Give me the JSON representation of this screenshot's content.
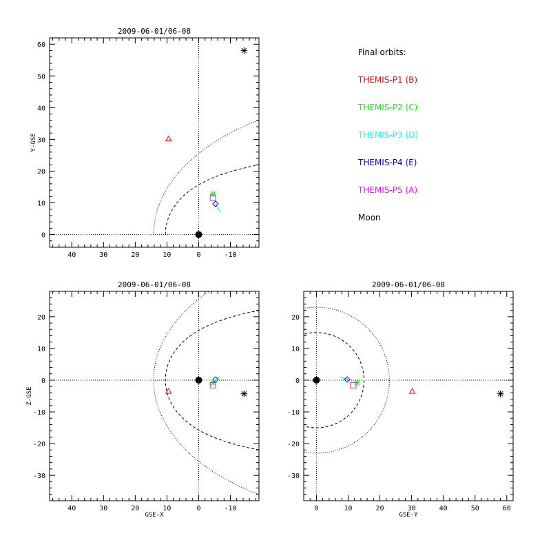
{
  "colors": {
    "p1": "#ff0000",
    "p2": "#00ff00",
    "p3": "#00ffff",
    "p4": "#0000ff",
    "p5": "#ff00ff",
    "moon": "#000000"
  },
  "legend": {
    "title": "Final orbits:",
    "items": [
      {
        "label": "THEMIS-P1 (B)",
        "color_key": "p1"
      },
      {
        "label": "THEMIS-P2 (C)",
        "color_key": "p2"
      },
      {
        "label": "THEMIS-P3 (D)",
        "color_key": "p3"
      },
      {
        "label": "THEMIS-P4 (E)",
        "color_key": "p4"
      },
      {
        "label": "THEMIS-P5 (A)",
        "color_key": "p5"
      },
      {
        "label": "Moon",
        "color_key": "moon"
      }
    ]
  },
  "chart_data": [
    {
      "type": "scatter",
      "panel": "xy",
      "title": "2009-06-01/06-08",
      "xlabel": "",
      "ylabel": "Y-GSE",
      "xlim": [
        47,
        -19
      ],
      "ylim": [
        62,
        -4
      ],
      "x_ticks": [
        40,
        30,
        20,
        10,
        0,
        -10
      ],
      "y_ticks": [
        0,
        10,
        20,
        30,
        40,
        50,
        60
      ],
      "earth": {
        "x": 0,
        "y": 0
      },
      "points": [
        {
          "sc": "p1",
          "marker": "triangle",
          "x": 9.5,
          "y": 30.2
        },
        {
          "sc": "p2",
          "marker": "asterisk",
          "x": -4.5,
          "y": 12.8
        },
        {
          "sc": "p3",
          "marker": "track",
          "x": [
            -5.3,
            -5.8,
            -6.3,
            -7.0
          ],
          "y": [
            9.8,
            8.8,
            7.9,
            7.1
          ]
        },
        {
          "sc": "p4",
          "marker": "diamond",
          "x": -5.3,
          "y": 9.7
        },
        {
          "sc": "p5",
          "marker": "square",
          "x": -4.5,
          "y": 11.6
        },
        {
          "sc": "moon",
          "marker": "asterisk",
          "x": -14.3,
          "y": 58.0
        }
      ]
    },
    {
      "type": "scatter",
      "panel": "xz",
      "title": "2009-06-01/06-08",
      "xlabel": "GSE-X",
      "ylabel": "Z-GSE",
      "xlim": [
        47,
        -19
      ],
      "ylim": [
        28,
        -38
      ],
      "x_ticks": [
        40,
        30,
        20,
        10,
        0,
        -10
      ],
      "y_ticks": [
        20,
        10,
        0,
        -10,
        -20,
        -30
      ],
      "earth": {
        "x": 0,
        "z": 0
      },
      "points": [
        {
          "sc": "p1",
          "marker": "triangle",
          "x": 9.5,
          "z": -3.5
        },
        {
          "sc": "p2",
          "marker": "asterisk",
          "x": -4.5,
          "z": -0.8
        },
        {
          "sc": "p3",
          "marker": "track",
          "x": [
            -5.3,
            -5.7,
            -6.1,
            -6.6
          ],
          "z": [
            0.3,
            0.5,
            0.8,
            1.1
          ]
        },
        {
          "sc": "p4",
          "marker": "diamond",
          "x": -5.3,
          "z": 0.2
        },
        {
          "sc": "p5",
          "marker": "square",
          "x": -4.5,
          "z": -1.6
        },
        {
          "sc": "moon",
          "marker": "asterisk",
          "x": -14.3,
          "z": -4.3
        }
      ]
    },
    {
      "type": "scatter",
      "panel": "yz",
      "title": "2009-06-01/06-08",
      "xlabel": "GSE-Y",
      "ylabel": "",
      "xlim": [
        -4,
        62
      ],
      "ylim": [
        28,
        -38
      ],
      "x_ticks": [
        0,
        10,
        20,
        30,
        40,
        50,
        60
      ],
      "y_ticks": [
        20,
        10,
        0,
        -10,
        -20,
        -30
      ],
      "earth": {
        "y": 0,
        "z": 0
      },
      "points": [
        {
          "sc": "p1",
          "marker": "triangle",
          "y": 30.2,
          "z": -3.5
        },
        {
          "sc": "p2",
          "marker": "asterisk",
          "y": 12.8,
          "z": -0.8
        },
        {
          "sc": "p3",
          "marker": "track",
          "y": [
            9.8,
            9.0,
            8.3,
            7.6
          ],
          "z": [
            0.3,
            0.5,
            0.8,
            1.1
          ]
        },
        {
          "sc": "p4",
          "marker": "diamond",
          "y": 9.7,
          "z": 0.2
        },
        {
          "sc": "p5",
          "marker": "square",
          "y": 11.6,
          "z": -1.6
        },
        {
          "sc": "moon",
          "marker": "asterisk",
          "y": 58.0,
          "z": -4.3
        }
      ]
    }
  ]
}
